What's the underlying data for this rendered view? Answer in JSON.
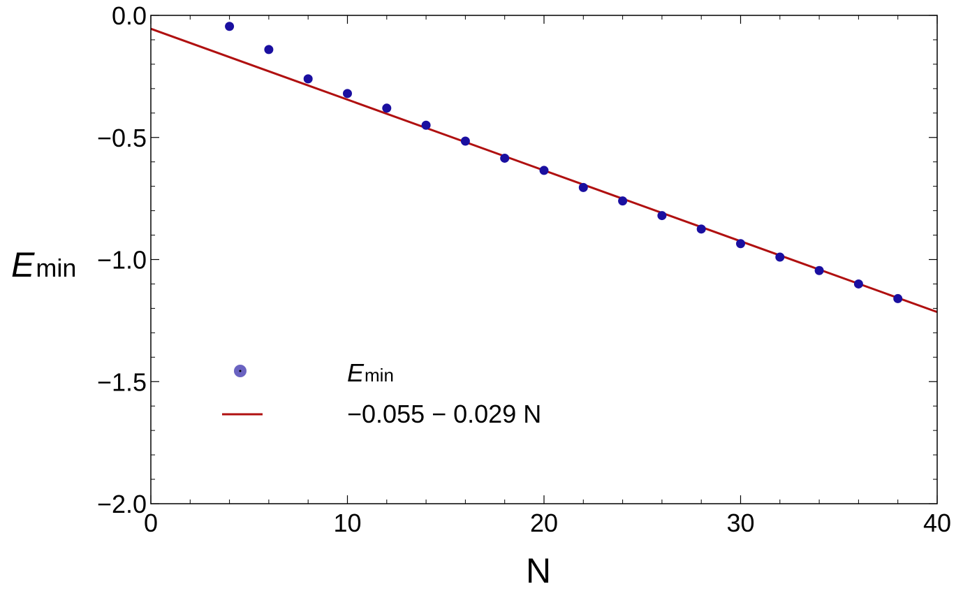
{
  "chart_data": {
    "type": "scatter",
    "xlabel": "N",
    "ylabel": {
      "main": "E",
      "sub": "min"
    },
    "xlim": [
      0,
      40
    ],
    "ylim": [
      -2.0,
      0.0
    ],
    "x_ticks": [
      0,
      10,
      20,
      30,
      40
    ],
    "y_ticks": [
      0.0,
      -0.5,
      -1.0,
      -1.5,
      -2.0
    ],
    "x_tick_labels": [
      "0",
      "10",
      "20",
      "30",
      "40"
    ],
    "y_tick_labels": [
      "0.0",
      "−0.5",
      "−1.0",
      "−1.5",
      "−2.0"
    ],
    "grid": false,
    "legend_position": "lower-left",
    "series": [
      {
        "name": {
          "main": "E",
          "sub": "min"
        },
        "kind": "points",
        "color": "#1a0fa0",
        "x": [
          4,
          6,
          8,
          10,
          12,
          14,
          16,
          18,
          20,
          22,
          24,
          26,
          28,
          30,
          32,
          34,
          36,
          38
        ],
        "y": [
          -0.045,
          -0.14,
          -0.26,
          -0.32,
          -0.38,
          -0.45,
          -0.515,
          -0.585,
          -0.635,
          -0.705,
          -0.76,
          -0.82,
          -0.875,
          -0.935,
          -0.99,
          -1.045,
          -1.1,
          -1.16
        ]
      },
      {
        "name": "−0.055 − 0.029 N",
        "kind": "line",
        "color": "#b01010",
        "intercept": -0.055,
        "slope": -0.029
      }
    ]
  }
}
